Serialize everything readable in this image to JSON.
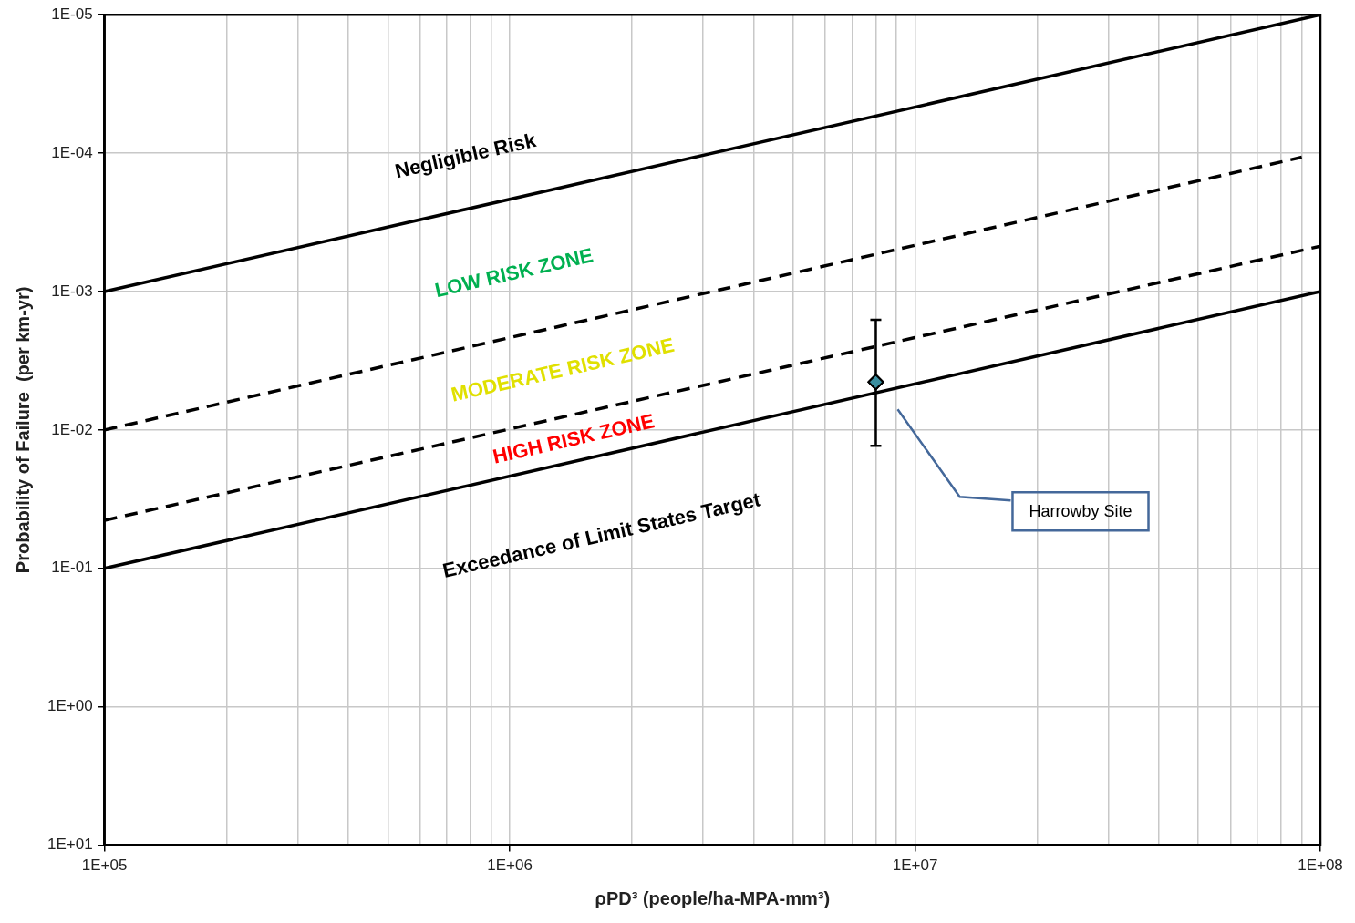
{
  "chart_data": {
    "type": "line",
    "xlabel": "ρPD³ (people/ha-MPA-mm³)",
    "ylabel": "Probability of Failure  (per km-yr)",
    "log": "xy",
    "grid": true,
    "legend": false,
    "xlim": [
      100000,
      100000000
    ],
    "xticks": [
      {
        "value": 100000,
        "label": "1E+05"
      },
      {
        "value": 200000,
        "label": null
      },
      {
        "value": 300000,
        "label": null
      },
      {
        "value": 400000,
        "label": null
      },
      {
        "value": 500000,
        "label": null
      },
      {
        "value": 600000,
        "label": null
      },
      {
        "value": 700000,
        "label": null
      },
      {
        "value": 800000,
        "label": null
      },
      {
        "value": 900000,
        "label": null
      },
      {
        "value": 1000000,
        "label": "1E+06"
      },
      {
        "value": 2000000,
        "label": null
      },
      {
        "value": 3000000,
        "label": null
      },
      {
        "value": 4000000,
        "label": null
      },
      {
        "value": 5000000,
        "label": null
      },
      {
        "value": 6000000,
        "label": null
      },
      {
        "value": 7000000,
        "label": null
      },
      {
        "value": 8000000,
        "label": null
      },
      {
        "value": 9000000,
        "label": null
      },
      {
        "value": 10000000,
        "label": "1E+07"
      },
      {
        "value": 20000000,
        "label": null
      },
      {
        "value": 30000000,
        "label": null
      },
      {
        "value": 40000000,
        "label": null
      },
      {
        "value": 50000000,
        "label": null
      },
      {
        "value": 60000000,
        "label": null
      },
      {
        "value": 70000000,
        "label": null
      },
      {
        "value": 80000000,
        "label": null
      },
      {
        "value": 90000000,
        "label": null
      },
      {
        "value": 100000000,
        "label": "1E+08"
      }
    ],
    "ylim": [
      10,
      1e-05
    ],
    "yticks": [
      {
        "value": 1e-05,
        "label": "1E-05"
      },
      {
        "value": 0.0001,
        "label": "1E-04"
      },
      {
        "value": 0.001,
        "label": "1E-03"
      },
      {
        "value": 0.01,
        "label": "1E-02"
      },
      {
        "value": 0.1,
        "label": "1E-01"
      },
      {
        "value": 1,
        "label": "1E+00"
      },
      {
        "value": 10,
        "label": "1E+01"
      }
    ],
    "series": [
      {
        "color": "#000000",
        "line_style": "solid",
        "x": [
          100000,
          100000000
        ],
        "values": [
          0.001,
          1e-05
        ]
      },
      {
        "color": "#000000",
        "line_style": "dashed",
        "x": [
          100000,
          90000000
        ],
        "values": [
          0.01,
          0.000107
        ]
      },
      {
        "color": "#000000",
        "line_style": "dashed",
        "x": [
          100000,
          100000000
        ],
        "values": [
          0.045,
          0.00047
        ]
      },
      {
        "color": "#000000",
        "line_style": "solid",
        "x": [
          100000,
          100000000
        ],
        "values": [
          0.1,
          0.001
        ]
      },
      {
        "type": "scatter",
        "color": "#3a8fa0",
        "marker": "diamond",
        "x": [
          8000000
        ],
        "values": [
          0.0045
        ],
        "errors": [
          [
            0.0016,
            0.013
          ]
        ]
      }
    ],
    "annotations": [
      "Negligible Risk",
      "LOW RISK ZONE",
      "MODERATE RISK ZONE",
      "HIGH RISK ZONE",
      "Exceedance of Limit States Target",
      "Harrowby Site"
    ]
  }
}
